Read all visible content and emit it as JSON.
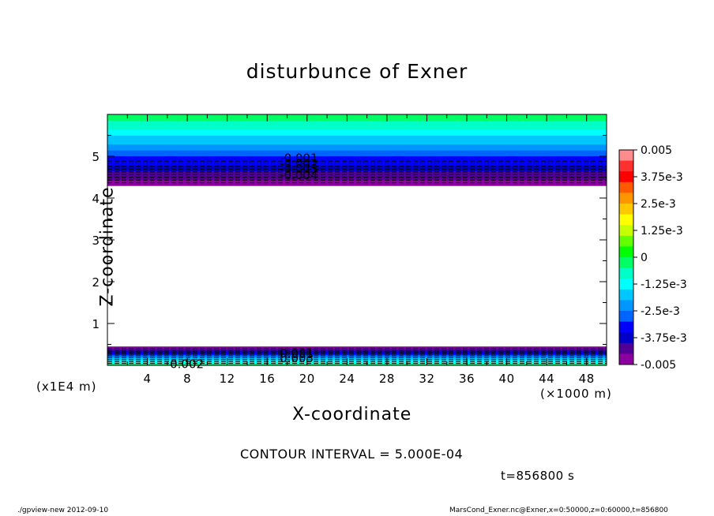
{
  "chart_data": {
    "type": "heatmap",
    "title": "disturbunce of Exner",
    "xlabel": "X-coordinate",
    "ylabel": "Z-coordinate",
    "x_unit_label": "(×1000 m)",
    "y_unit_label": "(x1E4 m)",
    "xlim": [
      0,
      50
    ],
    "ylim": [
      0,
      6
    ],
    "x_ticks": [
      4,
      8,
      12,
      16,
      20,
      24,
      28,
      32,
      36,
      40,
      44,
      48
    ],
    "y_ticks": [
      1,
      2,
      3,
      4,
      5
    ],
    "grid": false,
    "colorbar": {
      "range": [
        -0.005,
        0.005
      ],
      "step": 0.0005,
      "labels": [
        "0.005",
        "3.75e-3",
        "2.5e-3",
        "1.25e-3",
        "0",
        "-1.25e-3",
        "-2.5e-3",
        "-3.75e-3",
        "-0.005"
      ],
      "colors": [
        "#ff8c8c",
        "#ff3030",
        "#ff0000",
        "#ff5a00",
        "#ff9600",
        "#ffc800",
        "#ffff00",
        "#c8ff00",
        "#64ff00",
        "#00ff00",
        "#00ff64",
        "#00ffc8",
        "#00ffff",
        "#00c8ff",
        "#0096ff",
        "#0064ff",
        "#0000ff",
        "#0000c8",
        "#500096",
        "#8c00a0"
      ]
    },
    "bands": [
      {
        "z_from": 4.3,
        "z_to": 6.0,
        "value_from": -0.005,
        "value_to": 0.0,
        "note_labels": [
          "-0.001",
          "-0.002",
          "-0.003",
          "-0.004"
        ]
      },
      {
        "z_from": 0.0,
        "z_to": 0.45,
        "value_from": 0.0,
        "value_to": -0.005,
        "note_labels": [
          "0.001",
          "0.002",
          "0.003"
        ]
      }
    ],
    "contour_labels": [
      {
        "text": "-0.001",
        "x": 19.0,
        "z": 4.95
      },
      {
        "text": "-0.002",
        "x": 19.0,
        "z": 4.82
      },
      {
        "text": "-0.003",
        "x": 19.0,
        "z": 4.7
      },
      {
        "text": "-0.004",
        "x": 19.0,
        "z": 4.55
      },
      {
        "text": "0.001",
        "x": 19.0,
        "z": 0.28
      },
      {
        "text": "0.003",
        "x": 19.0,
        "z": 0.17
      },
      {
        "text": "0.002",
        "x": 8.0,
        "z": 0.03
      }
    ]
  },
  "contour_interval": "CONTOUR INTERVAL = 5.000E-04",
  "time_label": "t=856800  s",
  "footer_left": "./gpview-new   2012-09-10",
  "footer_right": "MarsCond_Exner.nc@Exner,x=0:50000,z=0:60000,t=856800"
}
